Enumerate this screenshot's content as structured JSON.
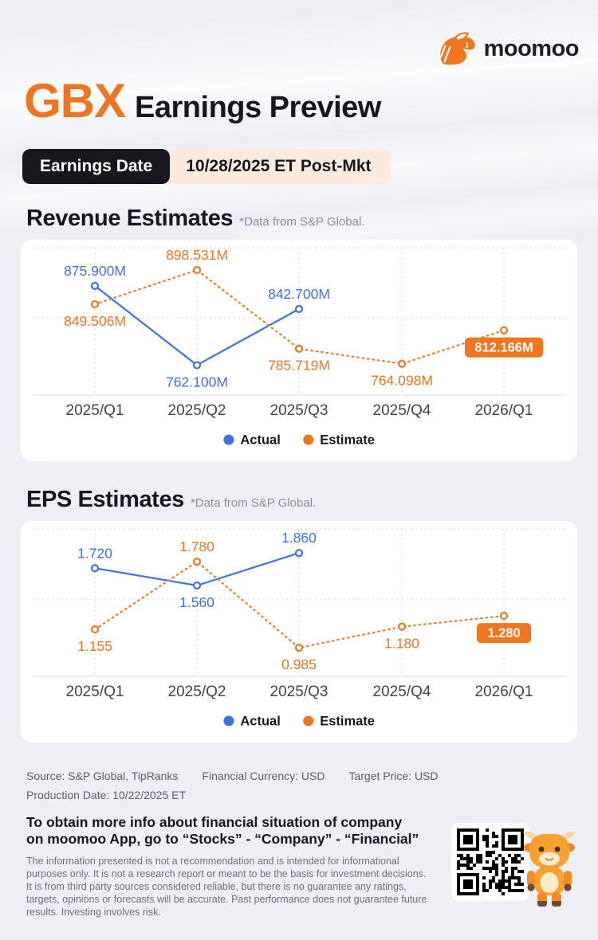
{
  "header": {
    "logo_text": "moomoo",
    "ticker": "GBX",
    "title": "Earnings Preview",
    "earnings_date_label": "Earnings Date",
    "earnings_date_value": "10/28/2025 ET Post-Mkt"
  },
  "colors": {
    "accent_orange": "#f0751f",
    "actual_blue": "#4070e4",
    "badge_black": "#17181d",
    "date_peach": "#fcebdc",
    "background": "#edeff5"
  },
  "sections": {
    "revenue": {
      "title": "Revenue Estimates",
      "note": "*Data from S&P Global."
    },
    "eps": {
      "title": "EPS Estimates",
      "note": "*Data from S&P Global."
    }
  },
  "chart_data": [
    {
      "id": "revenue",
      "type": "line",
      "title": "Revenue Estimates",
      "unit": "USD millions",
      "categories": [
        "2025/Q1",
        "2025/Q2",
        "2025/Q3",
        "2025/Q4",
        "2026/Q1"
      ],
      "series": [
        {
          "name": "Actual",
          "color": "#4070e4",
          "style": "solid",
          "values": [
            875.9,
            762.1,
            842.7,
            null,
            null
          ],
          "labels": [
            "875.900M",
            "762.100M",
            "842.700M",
            null,
            null
          ]
        },
        {
          "name": "Estimate",
          "color": "#f0751f",
          "style": "dotted",
          "highlight_last": true,
          "values": [
            849.506,
            898.531,
            785.719,
            764.098,
            812.166
          ],
          "labels": [
            "849.506M",
            "898.531M",
            "785.719M",
            "764.098M",
            "812.166M"
          ]
        }
      ],
      "ylim": [
        750,
        910
      ],
      "grid": true,
      "legend_position": "bottom"
    },
    {
      "id": "eps",
      "type": "line",
      "title": "EPS Estimates",
      "unit": "USD",
      "categories": [
        "2025/Q1",
        "2025/Q2",
        "2025/Q3",
        "2025/Q4",
        "2026/Q1"
      ],
      "series": [
        {
          "name": "Actual",
          "color": "#4070e4",
          "style": "solid",
          "values": [
            1.72,
            1.56,
            1.86,
            null,
            null
          ],
          "labels": [
            "1.720",
            "1.560",
            "1.860",
            null,
            null
          ]
        },
        {
          "name": "Estimate",
          "color": "#f0751f",
          "style": "dotted",
          "highlight_last": true,
          "values": [
            1.155,
            1.78,
            0.985,
            1.18,
            1.28
          ],
          "labels": [
            "1.155",
            "1.780",
            "0.985",
            "1.180",
            "1.280"
          ]
        }
      ],
      "ylim": [
        0.92,
        1.95
      ],
      "grid": true,
      "legend_position": "bottom"
    }
  ],
  "footer": {
    "source": "Source: S&P Global, TipRanks",
    "financial_currency": "Financial Currency: USD",
    "target_price": "Target Price: USD",
    "production_date": "Production Date: 10/22/2025 ET",
    "cta_line1": "To obtain more info about financial situation of company",
    "cta_line2": "on moomoo App, go to “Stocks” - “Company” - “Financial”",
    "disclaimer": "The information presented is not a recommendation and is intended for informational purposes only. It is not a research report or meant to be the basis for investment decisions. It is from third party sources considered reliable, but there is no guarantee any ratings, targets, opinions or forecasts will be accurate. Past performance does not guarantee future results. Investing involves risk."
  }
}
